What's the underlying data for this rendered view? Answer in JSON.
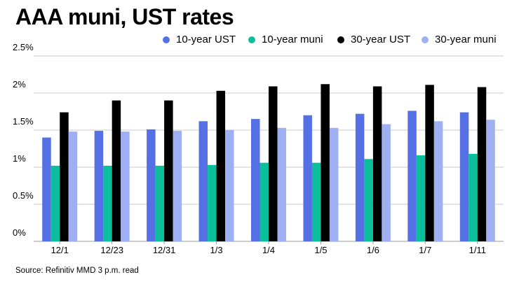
{
  "title": "AAA muni, UST rates",
  "source": "Source: Refinitiv MMD 3 p.m. read",
  "chart_data": {
    "type": "bar",
    "title": "AAA muni, UST rates",
    "categories": [
      "12/1",
      "12/23",
      "12/31",
      "1/3",
      "1/4",
      "1/5",
      "1/6",
      "1/7",
      "1/11"
    ],
    "series": [
      {
        "name": "10-year UST",
        "color": "#5470e4",
        "values": [
          1.4,
          1.49,
          1.51,
          1.62,
          1.65,
          1.7,
          1.72,
          1.76,
          1.74
        ]
      },
      {
        "name": "10-year muni",
        "color": "#0cbf9c",
        "values": [
          1.02,
          1.02,
          1.02,
          1.03,
          1.06,
          1.06,
          1.11,
          1.16,
          1.18
        ]
      },
      {
        "name": "30-year UST",
        "color": "#000000",
        "values": [
          1.74,
          1.9,
          1.9,
          2.03,
          2.09,
          2.12,
          2.09,
          2.11,
          2.08
        ]
      },
      {
        "name": "30-year muni",
        "color": "#9fb0f2",
        "values": [
          1.48,
          1.48,
          1.49,
          1.5,
          1.53,
          1.53,
          1.58,
          1.62,
          1.64
        ]
      }
    ],
    "ylim": [
      0,
      2.5
    ],
    "yticks": [
      "0%",
      "0.5%",
      "1%",
      "1.5%",
      "2%",
      "2.5%"
    ],
    "xlabel": "",
    "ylabel": "",
    "grid": true,
    "legend": "top-right"
  }
}
